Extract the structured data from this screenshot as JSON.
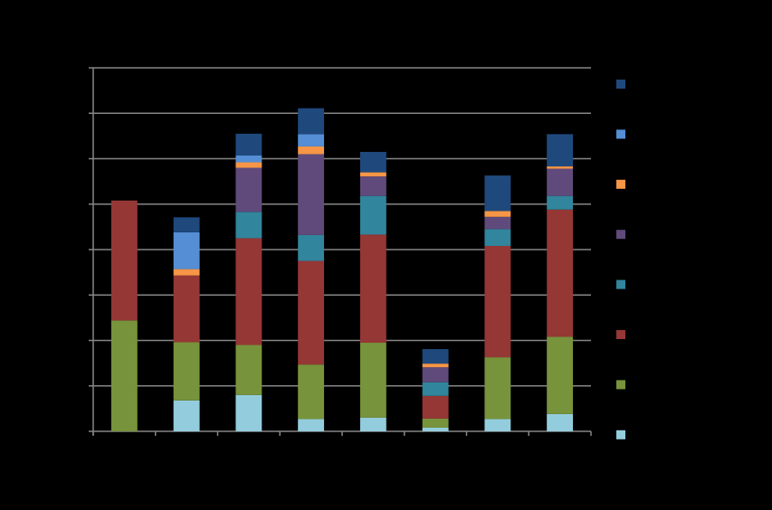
{
  "chart_data": {
    "type": "bar",
    "stacked": true,
    "title": "",
    "xlabel": "",
    "ylabel": "",
    "categories": [
      "",
      "",
      "",
      "",
      "",
      "",
      "",
      ""
    ],
    "ylim": [
      0,
      8
    ],
    "y_gridlines": [
      0,
      1,
      2,
      3,
      4,
      5,
      6,
      7,
      8
    ],
    "grid": true,
    "legend_position": "right",
    "series": [
      {
        "color": "#93CDDD",
        "values": [
          0,
          0.68,
          0.8,
          0.27,
          0.3,
          0.08,
          0.27,
          0.38
        ]
      },
      {
        "color": "#77933C",
        "values": [
          2.44,
          1.28,
          1.1,
          1.2,
          1.65,
          0.2,
          1.36,
          1.7
        ]
      },
      {
        "color": "#953735",
        "values": [
          2.64,
          1.47,
          2.35,
          2.28,
          2.38,
          0.5,
          2.45,
          2.8
        ]
      },
      {
        "color": "#31859C",
        "values": [
          0,
          0,
          0.58,
          0.57,
          0.85,
          0.3,
          0.37,
          0.3
        ]
      },
      {
        "color": "#604A7B",
        "values": [
          0,
          0,
          0.97,
          1.78,
          0.43,
          0.33,
          0.27,
          0.6
        ]
      },
      {
        "color": "#F79646",
        "values": [
          0,
          0.14,
          0.12,
          0.17,
          0.09,
          0.08,
          0.13,
          0.05
        ]
      },
      {
        "color": "#558ED5",
        "values": [
          0,
          0.81,
          0.15,
          0.27,
          0,
          0,
          0,
          0
        ]
      },
      {
        "color": "#1F497D",
        "values": [
          0,
          0.33,
          0.48,
          0.57,
          0.45,
          0.32,
          0.78,
          0.71
        ]
      }
    ]
  }
}
